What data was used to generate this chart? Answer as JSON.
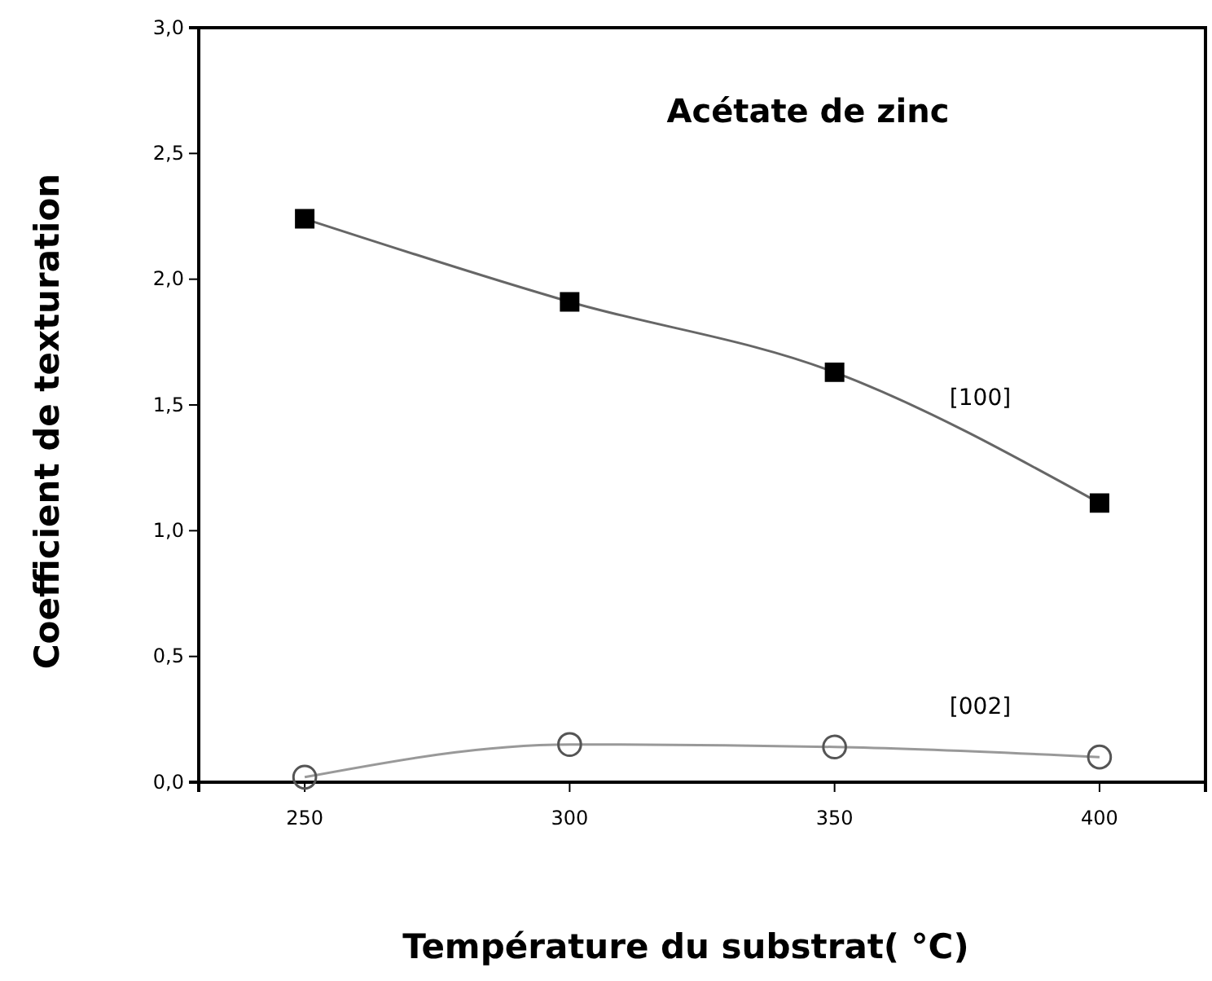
{
  "chart_data": {
    "type": "line",
    "title": "Acétate de zinc",
    "xlabel": "Température du substrat( °C)",
    "ylabel": "Coefficient de texturation",
    "x": [
      250,
      300,
      350,
      400
    ],
    "series": [
      {
        "name": "[100]",
        "color": "#000000",
        "marker": "square",
        "values": [
          2.24,
          1.91,
          1.63,
          1.11
        ]
      },
      {
        "name": "[002]",
        "color": "#555555",
        "marker": "circle",
        "values": [
          0.02,
          0.15,
          0.14,
          0.1
        ]
      }
    ],
    "xlim": [
      230,
      420
    ],
    "xticks": [
      250,
      300,
      350,
      400
    ],
    "ylim": [
      0,
      3
    ],
    "yticks": [
      {
        "value": 0,
        "label": "0,0"
      },
      {
        "value": 0.5,
        "label": "0,5"
      },
      {
        "value": 1,
        "label": "1,0"
      },
      {
        "value": 1.5,
        "label": "1,5"
      },
      {
        "value": 2,
        "label": "2,0"
      },
      {
        "value": 2.5,
        "label": "2,5"
      },
      {
        "value": 3,
        "label": "3,0"
      }
    ],
    "grid": false
  }
}
